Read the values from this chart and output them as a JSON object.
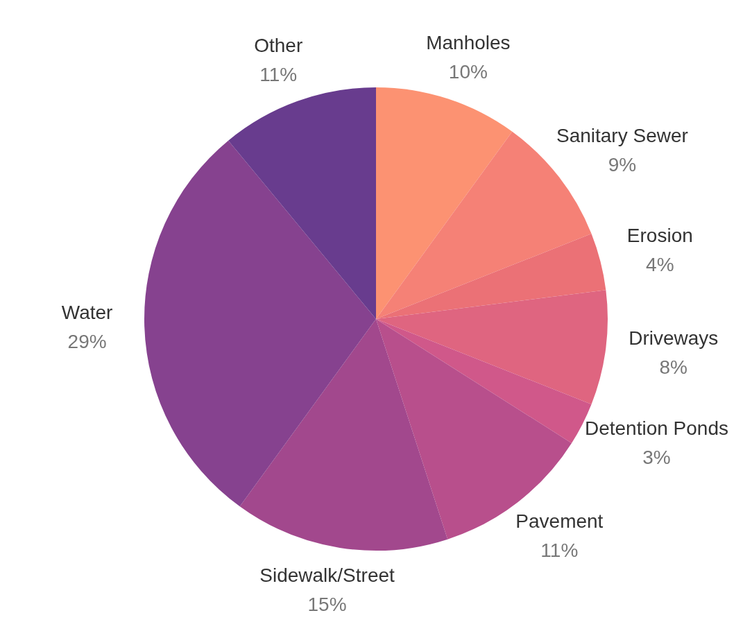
{
  "chart_data": {
    "type": "pie",
    "categories": [
      "Manholes",
      "Sanitary Sewer",
      "Erosion",
      "Driveways",
      "Detention Ponds",
      "Pavement",
      "Sidewalk/Street",
      "Water",
      "Other"
    ],
    "values": [
      10,
      9,
      4,
      8,
      3,
      11,
      15,
      29,
      11
    ],
    "value_labels": [
      "10%",
      "9%",
      "4%",
      "8%",
      "3%",
      "11%",
      "15%",
      "29%",
      "11%"
    ],
    "colors": [
      "#fc9272",
      "#f58176",
      "#eb7176",
      "#df6580",
      "#d0588a",
      "#b84f8c",
      "#a2488d",
      "#86428f",
      "#683c8e"
    ],
    "legend": false
  }
}
